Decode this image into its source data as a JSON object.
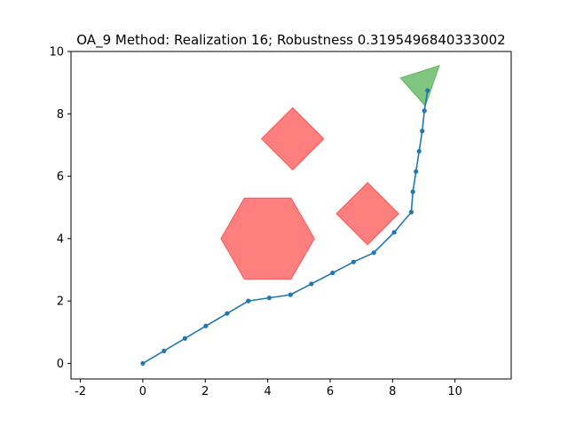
{
  "chart_data": {
    "type": "line",
    "title": "OA_9 Method: Realization 16; Robustness 0.3195496840333002",
    "xlabel": "",
    "ylabel": "",
    "xlim": [
      -2.3,
      11.8
    ],
    "ylim": [
      -0.5,
      10.0
    ],
    "xticks": [
      -2,
      0,
      2,
      4,
      6,
      8,
      10
    ],
    "yticks": [
      0,
      2,
      4,
      6,
      8,
      10
    ],
    "grid": false,
    "series": [
      {
        "color": "#1f77b4",
        "marker": "circle",
        "x": [
          0.0,
          0.68,
          1.35,
          2.02,
          2.7,
          3.38,
          4.05,
          4.73,
          5.4,
          6.08,
          6.75,
          7.4,
          8.05,
          8.6,
          8.65,
          8.75,
          8.85,
          8.95,
          9.02,
          9.12
        ],
        "y": [
          0.0,
          0.4,
          0.8,
          1.2,
          1.6,
          2.0,
          2.1,
          2.2,
          2.55,
          2.9,
          3.25,
          3.55,
          4.2,
          4.85,
          5.5,
          6.15,
          6.8,
          7.45,
          8.1,
          8.75
        ]
      }
    ],
    "obstacles": [
      {
        "shape": "diamond",
        "color": "#ff0000",
        "points": [
          [
            4.8,
            8.2
          ],
          [
            5.8,
            7.2
          ],
          [
            4.8,
            6.2
          ],
          [
            3.8,
            7.2
          ]
        ]
      },
      {
        "shape": "hexagon",
        "color": "#ff0000",
        "points": [
          [
            3.25,
            5.3
          ],
          [
            4.75,
            5.3
          ],
          [
            5.5,
            4.0
          ],
          [
            4.75,
            2.7
          ],
          [
            3.25,
            2.7
          ],
          [
            2.5,
            4.0
          ]
        ]
      },
      {
        "shape": "diamond",
        "color": "#ff0000",
        "points": [
          [
            7.2,
            5.8
          ],
          [
            8.2,
            4.8
          ],
          [
            7.2,
            3.8
          ],
          [
            6.2,
            4.8
          ]
        ]
      }
    ],
    "goal": {
      "shape": "triangle",
      "color": "#2ca02c",
      "points": [
        [
          8.25,
          9.15
        ],
        [
          9.5,
          9.55
        ],
        [
          9.05,
          8.25
        ]
      ]
    }
  }
}
